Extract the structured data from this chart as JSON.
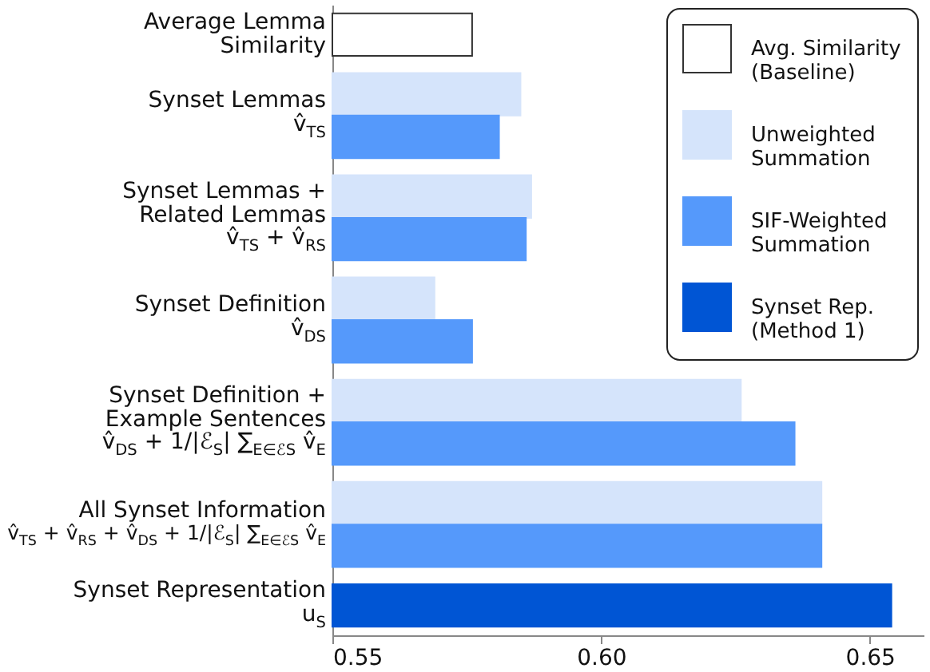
{
  "chart_data": {
    "type": "bar",
    "orientation": "horizontal",
    "categories": [
      "Average Lemma\nSimilarity",
      "Synset Lemmas\nv̂$_{TS}$",
      "Synset Lemmas +\nRelated Lemmas\nv̂$_{TS}$ + v̂$_{RS}$",
      "Synset Definition\nv̂$_{DS}$",
      "Synset Definition +\nExample Sentences\nv̂$_{DS}$ + 1/|ℰ$_{S}$| ∑$_{E∈ℰS}$ v̂$_{E}$",
      "All Synset Information\nv̂$_{TS}$ + v̂$_{RS}$ + v̂$_{DS}$ + 1/|ℰ$_{S}$| ∑$_{E∈ℰS}$ v̂$_{E}$",
      "Synset Representation\nu$_{S}$"
    ],
    "series": [
      {
        "name": "Avg. Similarity\n(Baseline)",
        "color": "#ffffff",
        "values": [
          0.576,
          null,
          null,
          null,
          null,
          null,
          null
        ]
      },
      {
        "name": "Unweighted\nSummation",
        "color": "#d5e4fb",
        "values": [
          null,
          0.585,
          0.587,
          0.569,
          0.626,
          0.641,
          null
        ]
      },
      {
        "name": "SIF-Weighted\nSummation",
        "color": "#5599fb",
        "values": [
          null,
          0.581,
          0.586,
          0.576,
          0.636,
          0.641,
          null
        ]
      },
      {
        "name": "Synset Rep.\n(Method 1)",
        "color": "#0055d4",
        "values": [
          null,
          null,
          null,
          null,
          null,
          null,
          0.654
        ]
      }
    ],
    "xlim": [
      0.55,
      0.66
    ],
    "xticks": [
      0.55,
      {
        "value": 0.6,
        "label": "0.60"
      },
      0.65
    ],
    "grid": false,
    "legend": "top right"
  }
}
